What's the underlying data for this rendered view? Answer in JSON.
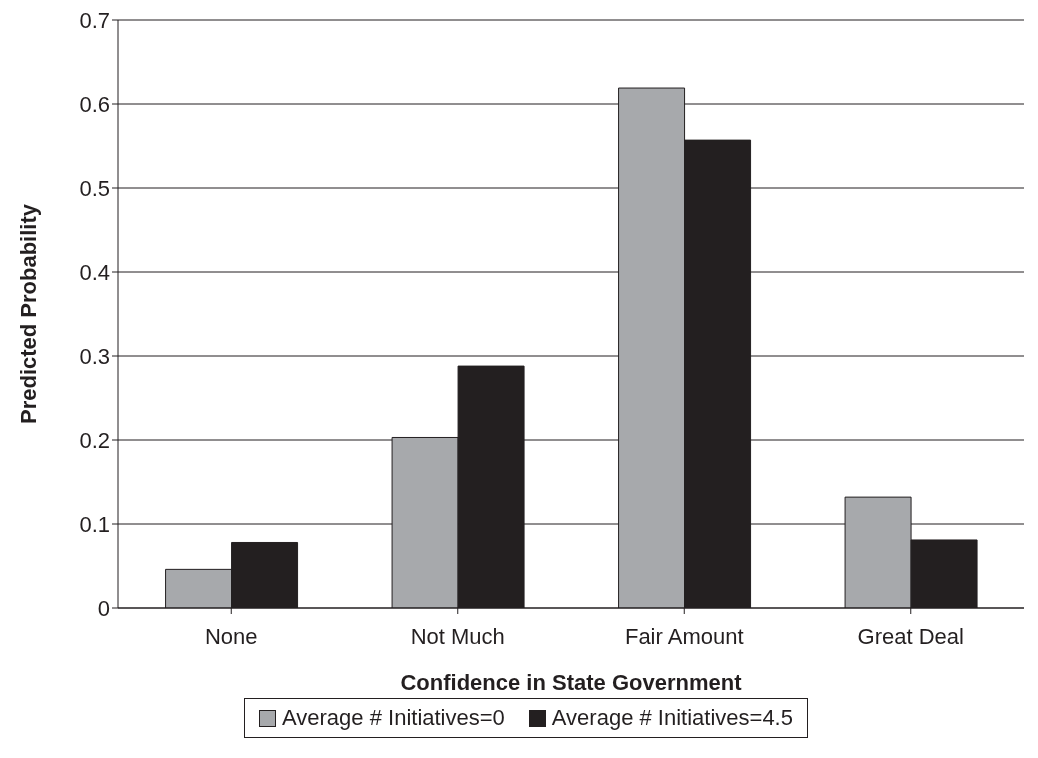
{
  "chart_data": {
    "type": "bar",
    "xlabel": "Confidence in State Government",
    "ylabel": "Predicted Probability",
    "categories": [
      "None",
      "Not Much",
      "Fair Amount",
      "Great Deal"
    ],
    "series": [
      {
        "name": "Average # Initiatives=0",
        "color": "#a7a9ac",
        "values": [
          0.046,
          0.203,
          0.619,
          0.132
        ]
      },
      {
        "name": "Average # Initiatives=4.5",
        "color": "#231f20",
        "values": [
          0.078,
          0.288,
          0.557,
          0.081
        ]
      }
    ],
    "ylim": [
      0,
      0.7
    ],
    "yticks": [
      0,
      0.1,
      0.2,
      0.3,
      0.4,
      0.5,
      0.6,
      0.7
    ],
    "grid": "y",
    "legend": "bottom"
  }
}
